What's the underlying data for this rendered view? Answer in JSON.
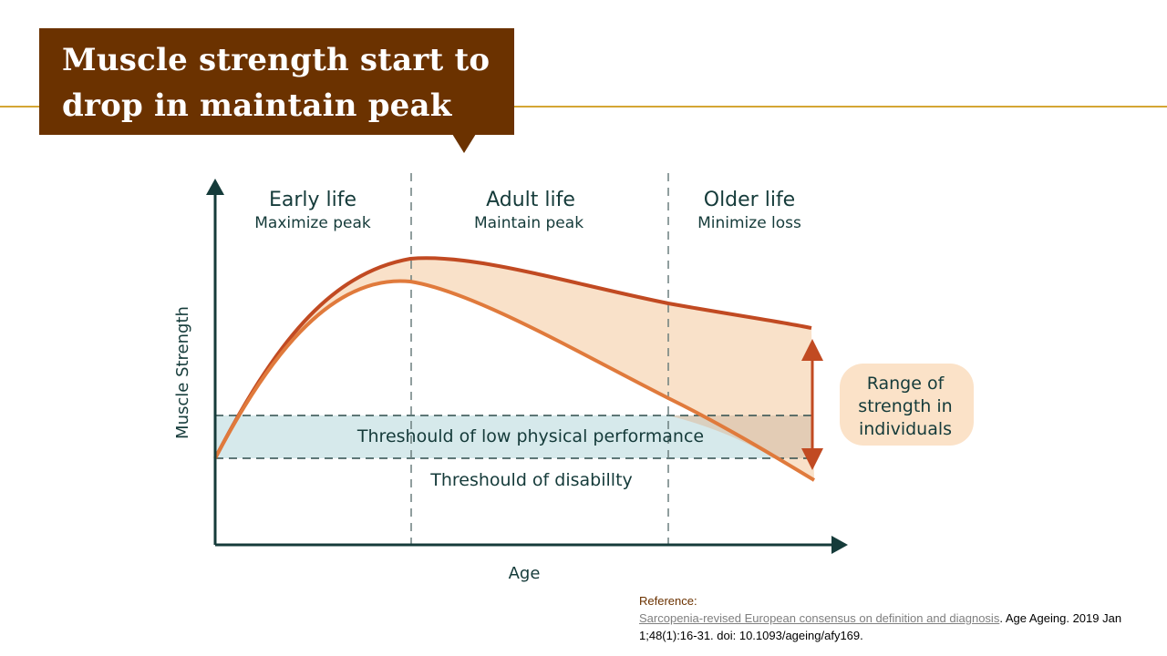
{
  "slide": {
    "title_line1": "Muscle strength start to",
    "title_line2": "drop in maintain peak",
    "accent_color": "#d4a634",
    "title_bg_color": "#6b3200"
  },
  "diagram": {
    "y_axis_label": "Muscle Strength",
    "x_axis_label": "Age",
    "phases": [
      {
        "title": "Early life",
        "subtitle": "Maximize peak"
      },
      {
        "title": "Adult life",
        "subtitle": "Maintain peak"
      },
      {
        "title": "Older life",
        "subtitle": "Minimize loss"
      }
    ],
    "low_performance_label": "Threshould of low physical performance",
    "disability_label": "Threshould of disabillty",
    "range_label_lines": [
      "Range of",
      "strength in",
      "individuals"
    ],
    "colors": {
      "upper_curve": "#c14a22",
      "lower_curve": "#e07a3c",
      "range_fill": "#f8dcc0",
      "threshold_band": "#d6e9eb",
      "axis": "#153b3a",
      "range_box": "#fbe2c8"
    }
  },
  "reference": {
    "heading": "Reference:",
    "link_text": "Sarcopenia-revised European consensus on definition and diagnosis",
    "citation_text": ". Age Ageing. 2019 Jan 1;48(1):16-31. doi: 10.1093/ageing/afy169."
  }
}
